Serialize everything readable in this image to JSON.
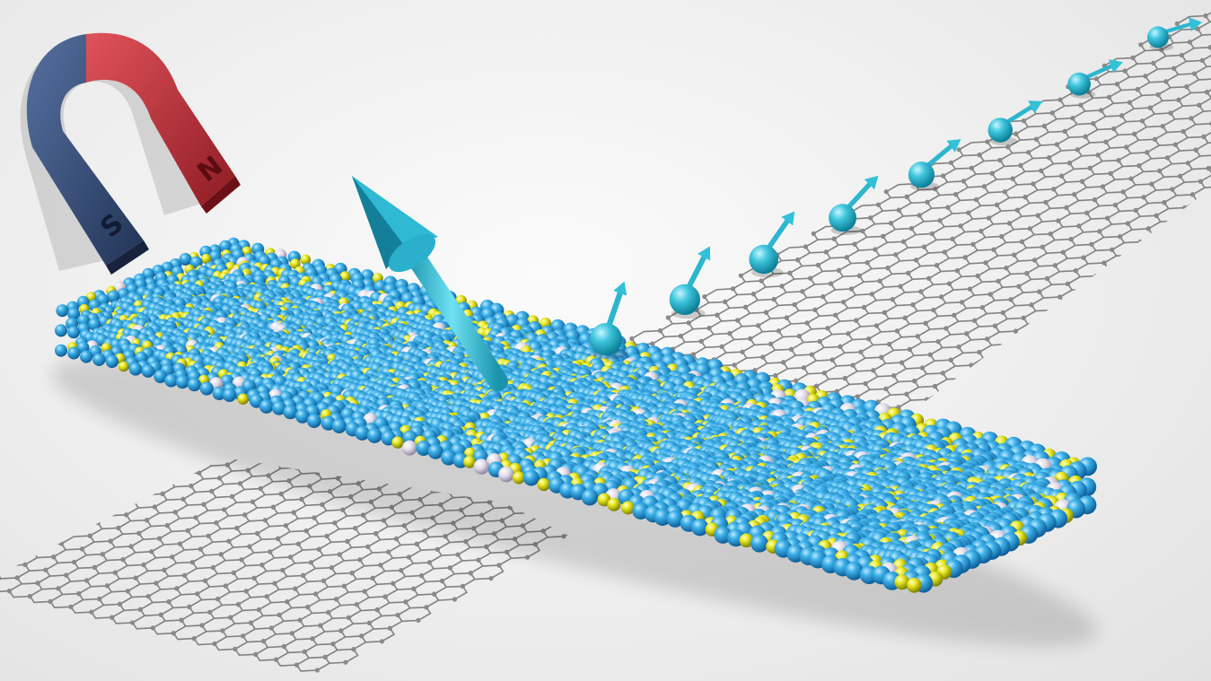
{
  "scene": {
    "background_color": "#efefef",
    "lattice_color": "#6e6e6e",
    "lattice_node_color": "#8a8a8a",
    "crystal_primary_color": "#2a9fd6",
    "crystal_dopant_color": "#e2e21c",
    "crystal_impurity_color": "#d8d4e0",
    "spin_color": "#38c4dc",
    "spin_count": 8
  },
  "magnet": {
    "north_label": "N",
    "south_label": "S",
    "north_color": "#c5323a",
    "south_color": "#3a4f7a"
  },
  "icons": [
    "horseshoe-magnet-icon",
    "spin-arrow-icon"
  ]
}
